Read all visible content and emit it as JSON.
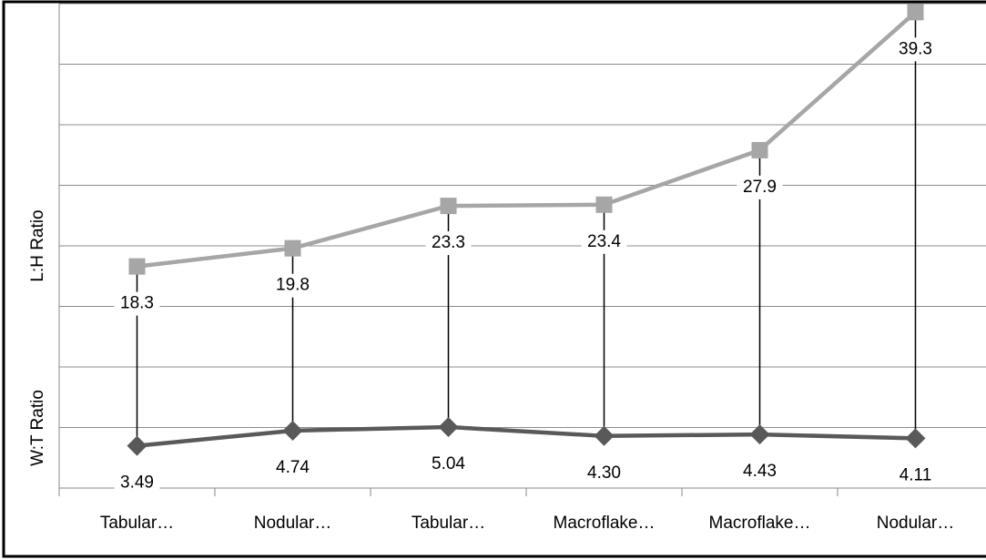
{
  "chart_data": {
    "type": "line",
    "y_axis_labels": [
      "L:H Ratio",
      "W:T Ratio"
    ],
    "categories": [
      "Tabular…",
      "Nodular…",
      "Tabular…",
      "Macroflake…",
      "Macroflake…",
      "Nodular…"
    ],
    "series": [
      {
        "name": "L:H Ratio",
        "color": "#a6a6a6",
        "marker": "square",
        "values": [
          18.3,
          19.8,
          23.3,
          23.4,
          27.9,
          39.3
        ]
      },
      {
        "name": "W:T Ratio",
        "color": "#595959",
        "marker": "diamond",
        "values": [
          3.49,
          4.74,
          5.04,
          4.3,
          4.43,
          4.11
        ],
        "value_labels": [
          "3.49",
          "4.74",
          "5.04",
          "4.30",
          "4.43",
          "4.11"
        ]
      }
    ],
    "high_low_lines": true,
    "ylim": [
      0,
      40
    ],
    "yticks": [
      0,
      5,
      10,
      15,
      20,
      25,
      30,
      35,
      40
    ],
    "grid": true
  }
}
